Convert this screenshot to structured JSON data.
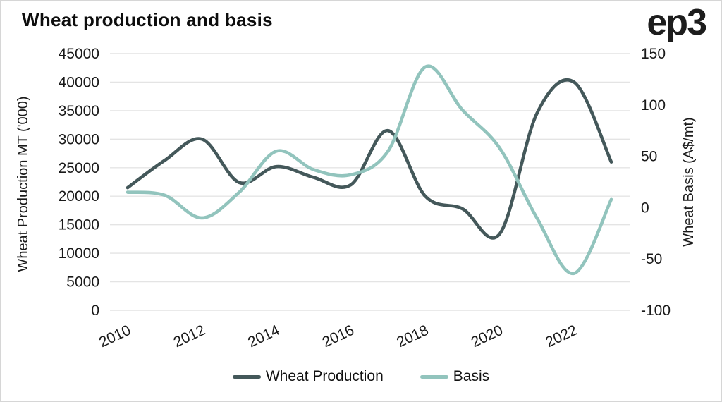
{
  "page": {
    "title": "Wheat production and basis",
    "logo": "ep3"
  },
  "chart_data": {
    "type": "line",
    "title": "Wheat production and basis",
    "x": [
      2010,
      2011,
      2012,
      2013,
      2014,
      2015,
      2016,
      2017,
      2018,
      2019,
      2020,
      2021,
      2022,
      2023
    ],
    "x_tick_years": [
      2010,
      2012,
      2014,
      2016,
      2018,
      2020,
      2022
    ],
    "series": [
      {
        "name": "Wheat Production",
        "axis": "left",
        "color": "#44585A",
        "values": [
          21500,
          26300,
          30000,
          22400,
          25200,
          23300,
          22000,
          31500,
          20000,
          17800,
          13400,
          34500,
          40000,
          26000
        ]
      },
      {
        "name": "Basis",
        "axis": "right",
        "color": "#92C4BD",
        "values": [
          15,
          12,
          -10,
          15,
          55,
          37,
          32,
          55,
          137,
          95,
          58,
          -10,
          -64,
          8
        ]
      }
    ],
    "left_axis": {
      "label": "Wheat Production MT ('000)",
      "min": 0,
      "max": 45000,
      "ticks": [
        0,
        5000,
        10000,
        15000,
        20000,
        25000,
        30000,
        35000,
        40000,
        45000
      ]
    },
    "right_axis": {
      "label": "Wheat Basis (A$/mt)",
      "min": -100,
      "max": 150,
      "ticks": [
        -100,
        -50,
        0,
        50,
        100,
        150
      ]
    },
    "grid": true,
    "grid_color": "#E4E4E4",
    "text_color": "#1A1A1A",
    "line_width": 4.6,
    "legend_position": "bottom"
  }
}
